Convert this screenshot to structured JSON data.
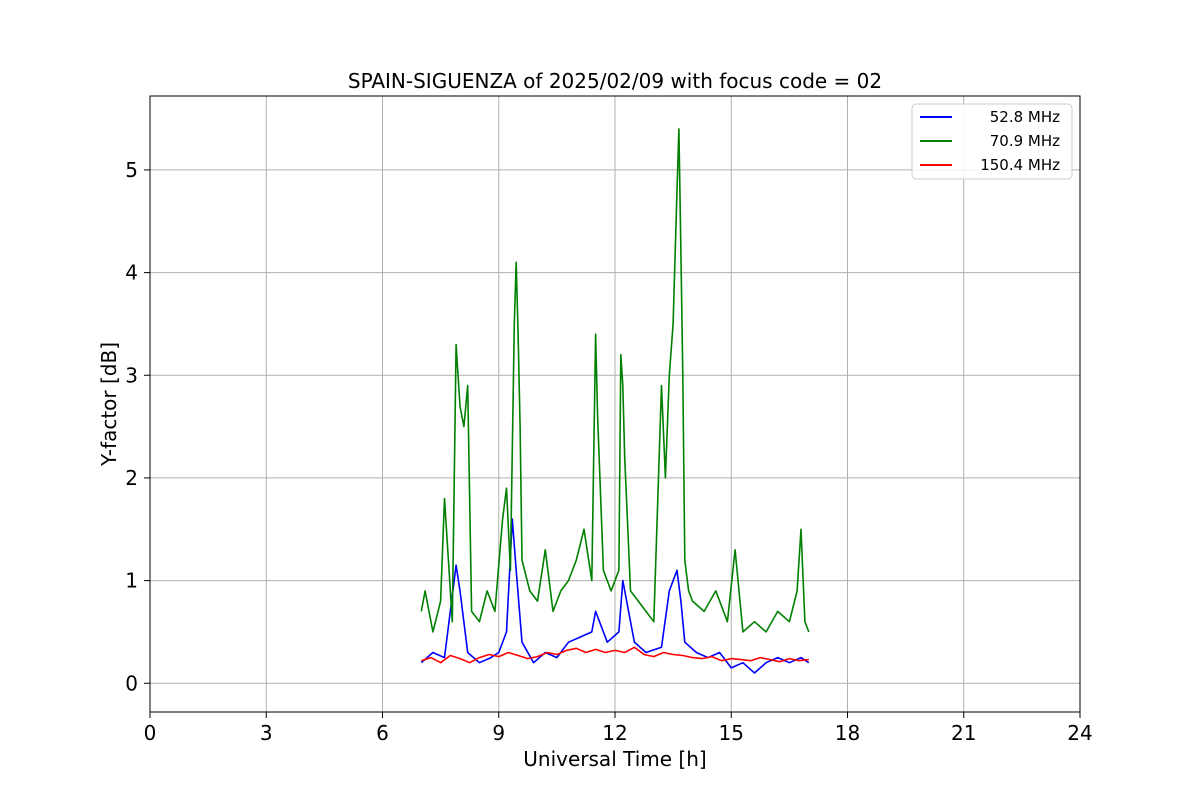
{
  "chart_data": {
    "type": "line",
    "title": "SPAIN-SIGUENZA of 2025/02/09 with focus code = 02",
    "xlabel": "Universal Time [h]",
    "ylabel": "Y-factor [dB]",
    "xlim": [
      0,
      24
    ],
    "ylim": [
      -0.28,
      5.72
    ],
    "xticks": [
      0,
      3,
      6,
      9,
      12,
      15,
      18,
      21,
      24
    ],
    "yticks": [
      0,
      1,
      2,
      3,
      4,
      5
    ],
    "grid": true,
    "legend_position": "top-right",
    "series": [
      {
        "name": "52.8 MHz",
        "color": "#0000ff",
        "x": [
          7.0,
          7.3,
          7.6,
          7.9,
          8.0,
          8.2,
          8.5,
          8.8,
          9.0,
          9.2,
          9.35,
          9.45,
          9.6,
          9.9,
          10.2,
          10.5,
          10.8,
          11.1,
          11.4,
          11.5,
          11.8,
          12.1,
          12.2,
          12.5,
          12.8,
          13.2,
          13.4,
          13.6,
          13.7,
          13.8,
          14.1,
          14.4,
          14.7,
          15.0,
          15.3,
          15.6,
          15.9,
          16.2,
          16.5,
          16.8,
          17.0
        ],
        "values": [
          0.2,
          0.3,
          0.25,
          1.15,
          0.9,
          0.3,
          0.2,
          0.25,
          0.3,
          0.5,
          1.6,
          1.1,
          0.4,
          0.2,
          0.3,
          0.25,
          0.4,
          0.45,
          0.5,
          0.7,
          0.4,
          0.5,
          1.0,
          0.4,
          0.3,
          0.35,
          0.9,
          1.1,
          0.8,
          0.4,
          0.3,
          0.25,
          0.3,
          0.15,
          0.2,
          0.1,
          0.2,
          0.25,
          0.2,
          0.25,
          0.2
        ]
      },
      {
        "name": "70.9 MHz",
        "color": "#008000",
        "x": [
          7.0,
          7.1,
          7.3,
          7.5,
          7.6,
          7.8,
          7.9,
          8.0,
          8.1,
          8.2,
          8.3,
          8.5,
          8.7,
          8.9,
          9.1,
          9.2,
          9.3,
          9.4,
          9.45,
          9.5,
          9.55,
          9.6,
          9.8,
          10.0,
          10.2,
          10.4,
          10.6,
          10.8,
          11.0,
          11.2,
          11.4,
          11.5,
          11.55,
          11.7,
          11.9,
          12.1,
          12.15,
          12.2,
          12.25,
          12.4,
          12.6,
          12.8,
          13.0,
          13.2,
          13.3,
          13.4,
          13.5,
          13.6,
          13.65,
          13.7,
          13.75,
          13.8,
          13.9,
          14.0,
          14.3,
          14.6,
          14.9,
          15.1,
          15.3,
          15.6,
          15.9,
          16.2,
          16.5,
          16.7,
          16.8,
          16.9,
          17.0
        ],
        "values": [
          0.7,
          0.9,
          0.5,
          0.8,
          1.8,
          0.6,
          3.3,
          2.7,
          2.5,
          2.9,
          0.7,
          0.6,
          0.9,
          0.7,
          1.6,
          1.9,
          1.1,
          3.5,
          4.1,
          3.4,
          2.5,
          1.2,
          0.9,
          0.8,
          1.3,
          0.7,
          0.9,
          1.0,
          1.2,
          1.5,
          1.0,
          3.4,
          2.6,
          1.1,
          0.9,
          1.1,
          3.2,
          2.9,
          2.2,
          0.9,
          0.8,
          0.7,
          0.6,
          2.9,
          2.0,
          3.0,
          3.5,
          4.8,
          5.4,
          4.2,
          3.0,
          1.2,
          0.9,
          0.8,
          0.7,
          0.9,
          0.6,
          1.3,
          0.5,
          0.6,
          0.5,
          0.7,
          0.6,
          0.9,
          1.5,
          0.6,
          0.5
        ]
      },
      {
        "name": "150.4 MHz",
        "color": "#ff0000",
        "x": [
          7.0,
          7.25,
          7.5,
          7.75,
          8.0,
          8.25,
          8.5,
          8.75,
          9.0,
          9.25,
          9.5,
          9.75,
          10.0,
          10.25,
          10.5,
          10.75,
          11.0,
          11.25,
          11.5,
          11.75,
          12.0,
          12.25,
          12.5,
          12.75,
          13.0,
          13.25,
          13.5,
          13.75,
          14.0,
          14.25,
          14.5,
          14.75,
          15.0,
          15.25,
          15.5,
          15.75,
          16.0,
          16.25,
          16.5,
          16.75,
          17.0
        ],
        "values": [
          0.22,
          0.25,
          0.2,
          0.27,
          0.24,
          0.2,
          0.25,
          0.28,
          0.26,
          0.3,
          0.27,
          0.24,
          0.26,
          0.3,
          0.28,
          0.32,
          0.34,
          0.3,
          0.33,
          0.3,
          0.32,
          0.3,
          0.35,
          0.28,
          0.26,
          0.3,
          0.28,
          0.27,
          0.25,
          0.24,
          0.26,
          0.22,
          0.24,
          0.23,
          0.22,
          0.25,
          0.23,
          0.21,
          0.24,
          0.22,
          0.23
        ]
      }
    ]
  }
}
